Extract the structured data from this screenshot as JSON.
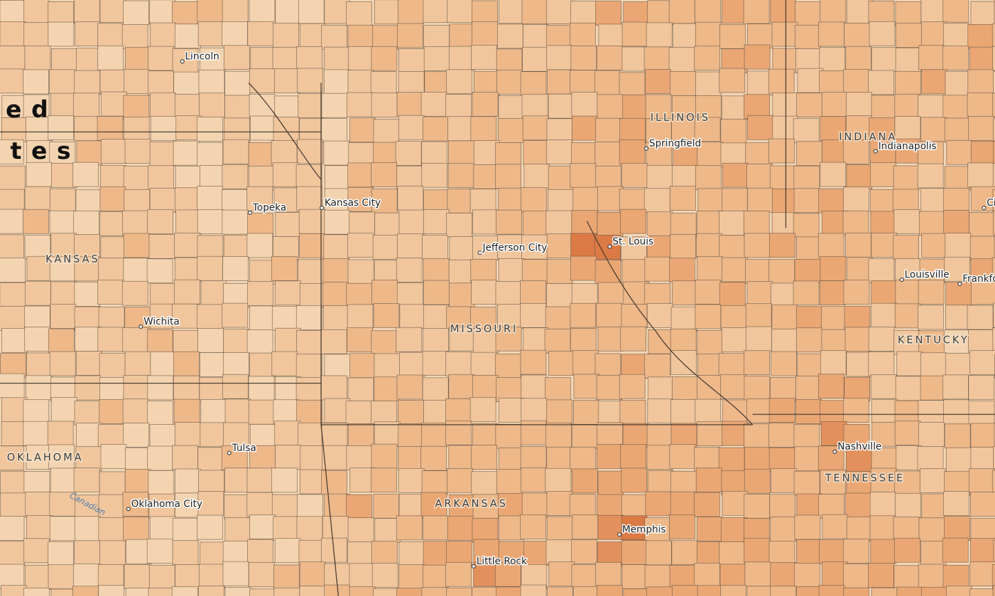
{
  "country_label": [
    "ted",
    "ates"
  ],
  "states": [
    "KANSAS",
    "MISSOURI",
    "ILLINOIS",
    "INDIANA",
    "KENTUCKY",
    "TENNESSEE",
    "OKLAHOMA",
    "ARKANSAS"
  ],
  "cities": [
    "Lincoln",
    "Topeka",
    "Kansas City",
    "Jefferson City",
    "St. Louis",
    "Springfield",
    "Indianapolis",
    "Louisville",
    "Frankfo",
    "Ci",
    "Wichita",
    "Tulsa",
    "Oklahoma City",
    "Nashville",
    "Memphis",
    "Little Rock"
  ],
  "rivers": [
    "Canadian"
  ]
}
